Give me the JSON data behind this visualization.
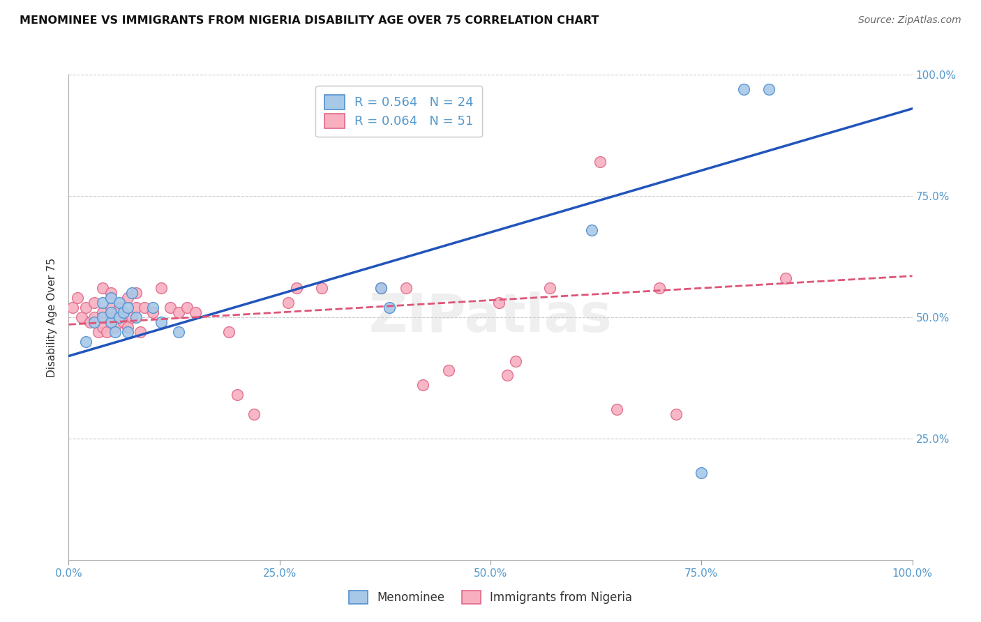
{
  "title": "MENOMINEE VS IMMIGRANTS FROM NIGERIA DISABILITY AGE OVER 75 CORRELATION CHART",
  "source": "Source: ZipAtlas.com",
  "ylabel": "Disability Age Over 75",
  "xlim": [
    0.0,
    1.0
  ],
  "ylim": [
    0.0,
    1.0
  ],
  "ytick_values": [
    0.25,
    0.5,
    0.75,
    1.0
  ],
  "ytick_labels": [
    "25.0%",
    "50.0%",
    "75.0%",
    "100.0%"
  ],
  "xtick_values": [
    0.0,
    0.25,
    0.5,
    0.75,
    1.0
  ],
  "xtick_labels": [
    "0.0%",
    "25.0%",
    "50.0%",
    "75.0%",
    "100.0%"
  ],
  "blue_fill": "#a8c8e8",
  "blue_edge": "#5090d0",
  "pink_fill": "#f8b0c0",
  "pink_edge": "#e06888",
  "blue_line": "#2255bb",
  "pink_line": "#dd5577",
  "menominee_x": [
    0.02,
    0.03,
    0.04,
    0.04,
    0.05,
    0.05,
    0.05,
    0.055,
    0.06,
    0.06,
    0.065,
    0.07,
    0.07,
    0.075,
    0.08,
    0.1,
    0.11,
    0.13,
    0.37,
    0.38,
    0.62,
    0.75,
    0.8,
    0.83
  ],
  "menominee_y": [
    0.45,
    0.49,
    0.5,
    0.53,
    0.49,
    0.51,
    0.54,
    0.47,
    0.5,
    0.53,
    0.51,
    0.47,
    0.52,
    0.55,
    0.5,
    0.52,
    0.49,
    0.47,
    0.56,
    0.52,
    0.68,
    0.18,
    0.97,
    0.97
  ],
  "nigeria_x": [
    0.005,
    0.01,
    0.015,
    0.02,
    0.025,
    0.03,
    0.03,
    0.035,
    0.04,
    0.04,
    0.04,
    0.045,
    0.05,
    0.05,
    0.05,
    0.055,
    0.06,
    0.06,
    0.065,
    0.07,
    0.07,
    0.075,
    0.08,
    0.08,
    0.085,
    0.09,
    0.1,
    0.11,
    0.12,
    0.13,
    0.14,
    0.15,
    0.19,
    0.2,
    0.22,
    0.26,
    0.27,
    0.3,
    0.37,
    0.4,
    0.42,
    0.45,
    0.51,
    0.52,
    0.53,
    0.57,
    0.63,
    0.65,
    0.7,
    0.72,
    0.85
  ],
  "nigeria_y": [
    0.52,
    0.54,
    0.5,
    0.52,
    0.49,
    0.5,
    0.53,
    0.47,
    0.48,
    0.51,
    0.56,
    0.47,
    0.5,
    0.52,
    0.55,
    0.48,
    0.5,
    0.52,
    0.49,
    0.48,
    0.54,
    0.5,
    0.52,
    0.55,
    0.47,
    0.52,
    0.51,
    0.56,
    0.52,
    0.51,
    0.52,
    0.51,
    0.47,
    0.34,
    0.3,
    0.53,
    0.56,
    0.56,
    0.56,
    0.56,
    0.36,
    0.39,
    0.53,
    0.38,
    0.41,
    0.56,
    0.82,
    0.31,
    0.56,
    0.3,
    0.58
  ],
  "blue_line_x0": 0.0,
  "blue_line_y0": 0.42,
  "blue_line_x1": 1.0,
  "blue_line_y1": 0.93,
  "pink_line_x0": 0.0,
  "pink_line_y0": 0.485,
  "pink_line_x1": 1.0,
  "pink_line_y1": 0.585,
  "background_color": "#ffffff",
  "grid_color": "#cccccc",
  "tick_color": "#5599cc",
  "label_color": "#333333"
}
